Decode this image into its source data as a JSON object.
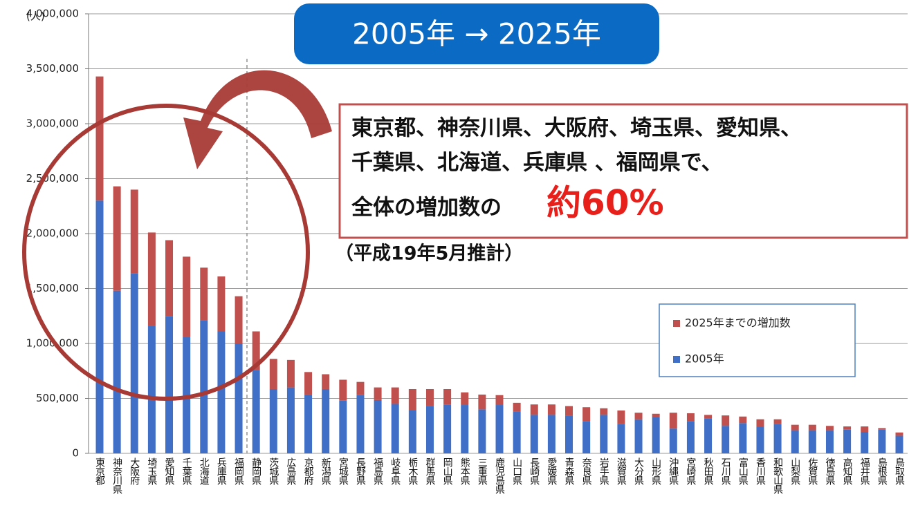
{
  "chart_data": {
    "type": "bar",
    "stacked": true,
    "banner": "2005年 → 2025年",
    "annotation": {
      "lines": [
        "東京都、神奈川県、大阪府、埼玉県、愛知県、",
        "千葉県、北海道、兵庫県 、福岡県で、",
        "全体の増加数の"
      ],
      "highlight": "約60%"
    },
    "note": "（平成19年5月推計）",
    "y_unit": "(人)",
    "categories": [
      "東京都",
      "神奈川県",
      "大阪府",
      "埼玉県",
      "愛知県",
      "千葉県",
      "北海道",
      "兵庫県",
      "福岡県",
      "静岡県",
      "茨城県",
      "広島県",
      "京都府",
      "新潟県",
      "宮城県",
      "長野県",
      "福島県",
      "岐阜県",
      "栃木県",
      "群馬県",
      "岡山県",
      "熊本県",
      "三重県",
      "鹿児島県",
      "山口県",
      "長崎県",
      "愛媛県",
      "青森県",
      "奈良県",
      "岩手県",
      "滋賀県",
      "大分県",
      "山形県",
      "沖縄県",
      "宮崎県",
      "秋田県",
      "石川県",
      "富山県",
      "香川県",
      "和歌山県",
      "山梨県",
      "佐賀県",
      "徳島県",
      "高知県",
      "福井県",
      "島根県",
      "鳥取県"
    ],
    "series": [
      {
        "name": "2005年",
        "color": "#3f6fc6",
        "values": [
          2300000,
          1480000,
          1640000,
          1160000,
          1250000,
          1060000,
          1210000,
          1110000,
          1000000,
          760000,
          585000,
          600000,
          535000,
          585000,
          480000,
          530000,
          485000,
          450000,
          390000,
          430000,
          445000,
          440000,
          400000,
          440000,
          380000,
          350000,
          350000,
          340000,
          290000,
          350000,
          265000,
          310000,
          330000,
          225000,
          290000,
          315000,
          250000,
          275000,
          245000,
          265000,
          210000,
          210000,
          210000,
          215000,
          195000,
          215000,
          160000
        ]
      },
      {
        "name": "2025年までの増加数",
        "color": "#c0504d",
        "values": [
          1130000,
          950000,
          760000,
          850000,
          690000,
          730000,
          480000,
          500000,
          430000,
          350000,
          275000,
          250000,
          205000,
          135000,
          190000,
          120000,
          115000,
          150000,
          195000,
          155000,
          140000,
          115000,
          135000,
          90000,
          80000,
          95000,
          95000,
          90000,
          130000,
          60000,
          125000,
          60000,
          30000,
          145000,
          75000,
          35000,
          95000,
          60000,
          65000,
          45000,
          50000,
          50000,
          40000,
          30000,
          50000,
          15000,
          30000
        ]
      }
    ],
    "ylim": [
      0,
      4000000
    ],
    "yticks": [
      0,
      {
        "value": 500000,
        "label": "500,000"
      },
      {
        "value": 1000000,
        "label": "1,000,000"
      },
      {
        "value": 1500000,
        "label": "1,500,000"
      },
      {
        "value": 2000000,
        "label": "2,000,000"
      },
      {
        "value": 2500000,
        "label": "2,500,000"
      },
      {
        "value": 3000000,
        "label": "3,000,000"
      },
      {
        "value": 3500000,
        "label": "3,500,000"
      },
      {
        "value": 4000000,
        "label": "4,000,000"
      }
    ],
    "grid": true,
    "legend": "right"
  }
}
